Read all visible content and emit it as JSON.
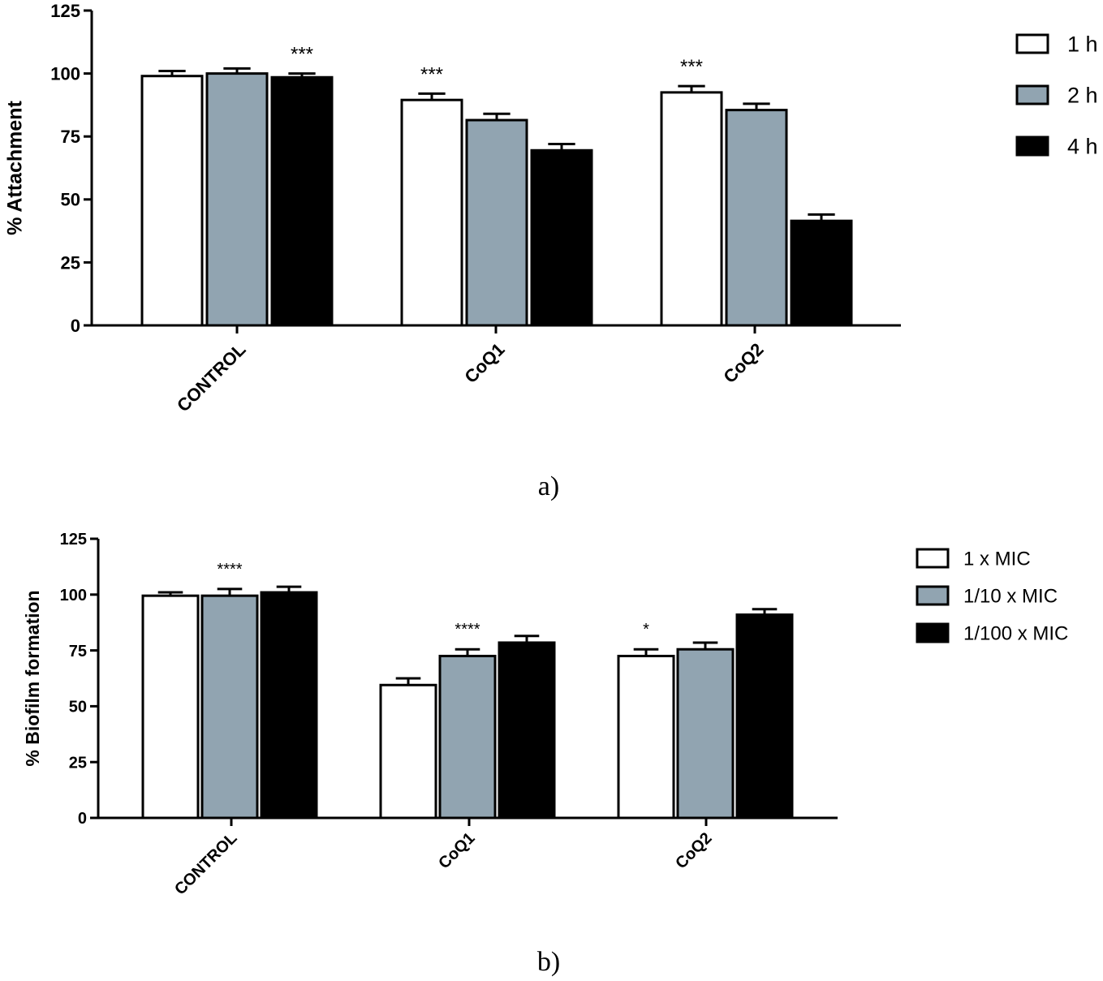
{
  "colors": {
    "series_fill": [
      "#ffffff",
      "#91a4b1",
      "#000000"
    ],
    "stroke": "#000000"
  },
  "chart_data": [
    {
      "type": "bar",
      "caption": "a)",
      "ylabel": "% Attachment",
      "ylim": [
        0,
        125
      ],
      "yticks": [
        "0",
        "25",
        "50",
        "75",
        "100",
        "125"
      ],
      "categories": [
        "CONTROL",
        "CoQ1",
        "CoQ2"
      ],
      "legend_position": "top-right",
      "series": [
        {
          "name": "1 h",
          "values": [
            99,
            89.5,
            92.5
          ],
          "errors": [
            2,
            2.5,
            2.5
          ]
        },
        {
          "name": "2 h",
          "values": [
            100,
            81.5,
            85.5
          ],
          "errors": [
            2,
            2.5,
            2.5
          ]
        },
        {
          "name": "4 h",
          "values": [
            98.5,
            69.5,
            41.5
          ],
          "errors": [
            1.5,
            2.5,
            2.5
          ]
        }
      ],
      "annotations": [
        {
          "text": "***",
          "category": 0,
          "series": 2
        },
        {
          "text": "***",
          "category": 1,
          "series": 0
        },
        {
          "text": "***",
          "category": 2,
          "series": 0
        }
      ]
    },
    {
      "type": "bar",
      "caption": "b)",
      "ylabel": "% Biofilm formation",
      "ylim": [
        0,
        125
      ],
      "yticks": [
        "0",
        "25",
        "50",
        "75",
        "100",
        "125"
      ],
      "categories": [
        "CONTROL",
        "CoQ1",
        "CoQ2"
      ],
      "legend_position": "top-right",
      "series": [
        {
          "name": "1 x MIC",
          "values": [
            99.5,
            59.5,
            72.5
          ],
          "errors": [
            1.5,
            3,
            3
          ]
        },
        {
          "name": "1/10 x MIC",
          "values": [
            99.5,
            72.5,
            75.5
          ],
          "errors": [
            3,
            3,
            3
          ]
        },
        {
          "name": "1/100 x MIC",
          "values": [
            101,
            78.5,
            91
          ],
          "errors": [
            2.5,
            3,
            2.5
          ]
        }
      ],
      "annotations": [
        {
          "text": "****",
          "category": 0,
          "series": 1
        },
        {
          "text": "****",
          "category": 1,
          "series": 1
        },
        {
          "text": "*",
          "category": 2,
          "series": 0
        }
      ]
    }
  ]
}
